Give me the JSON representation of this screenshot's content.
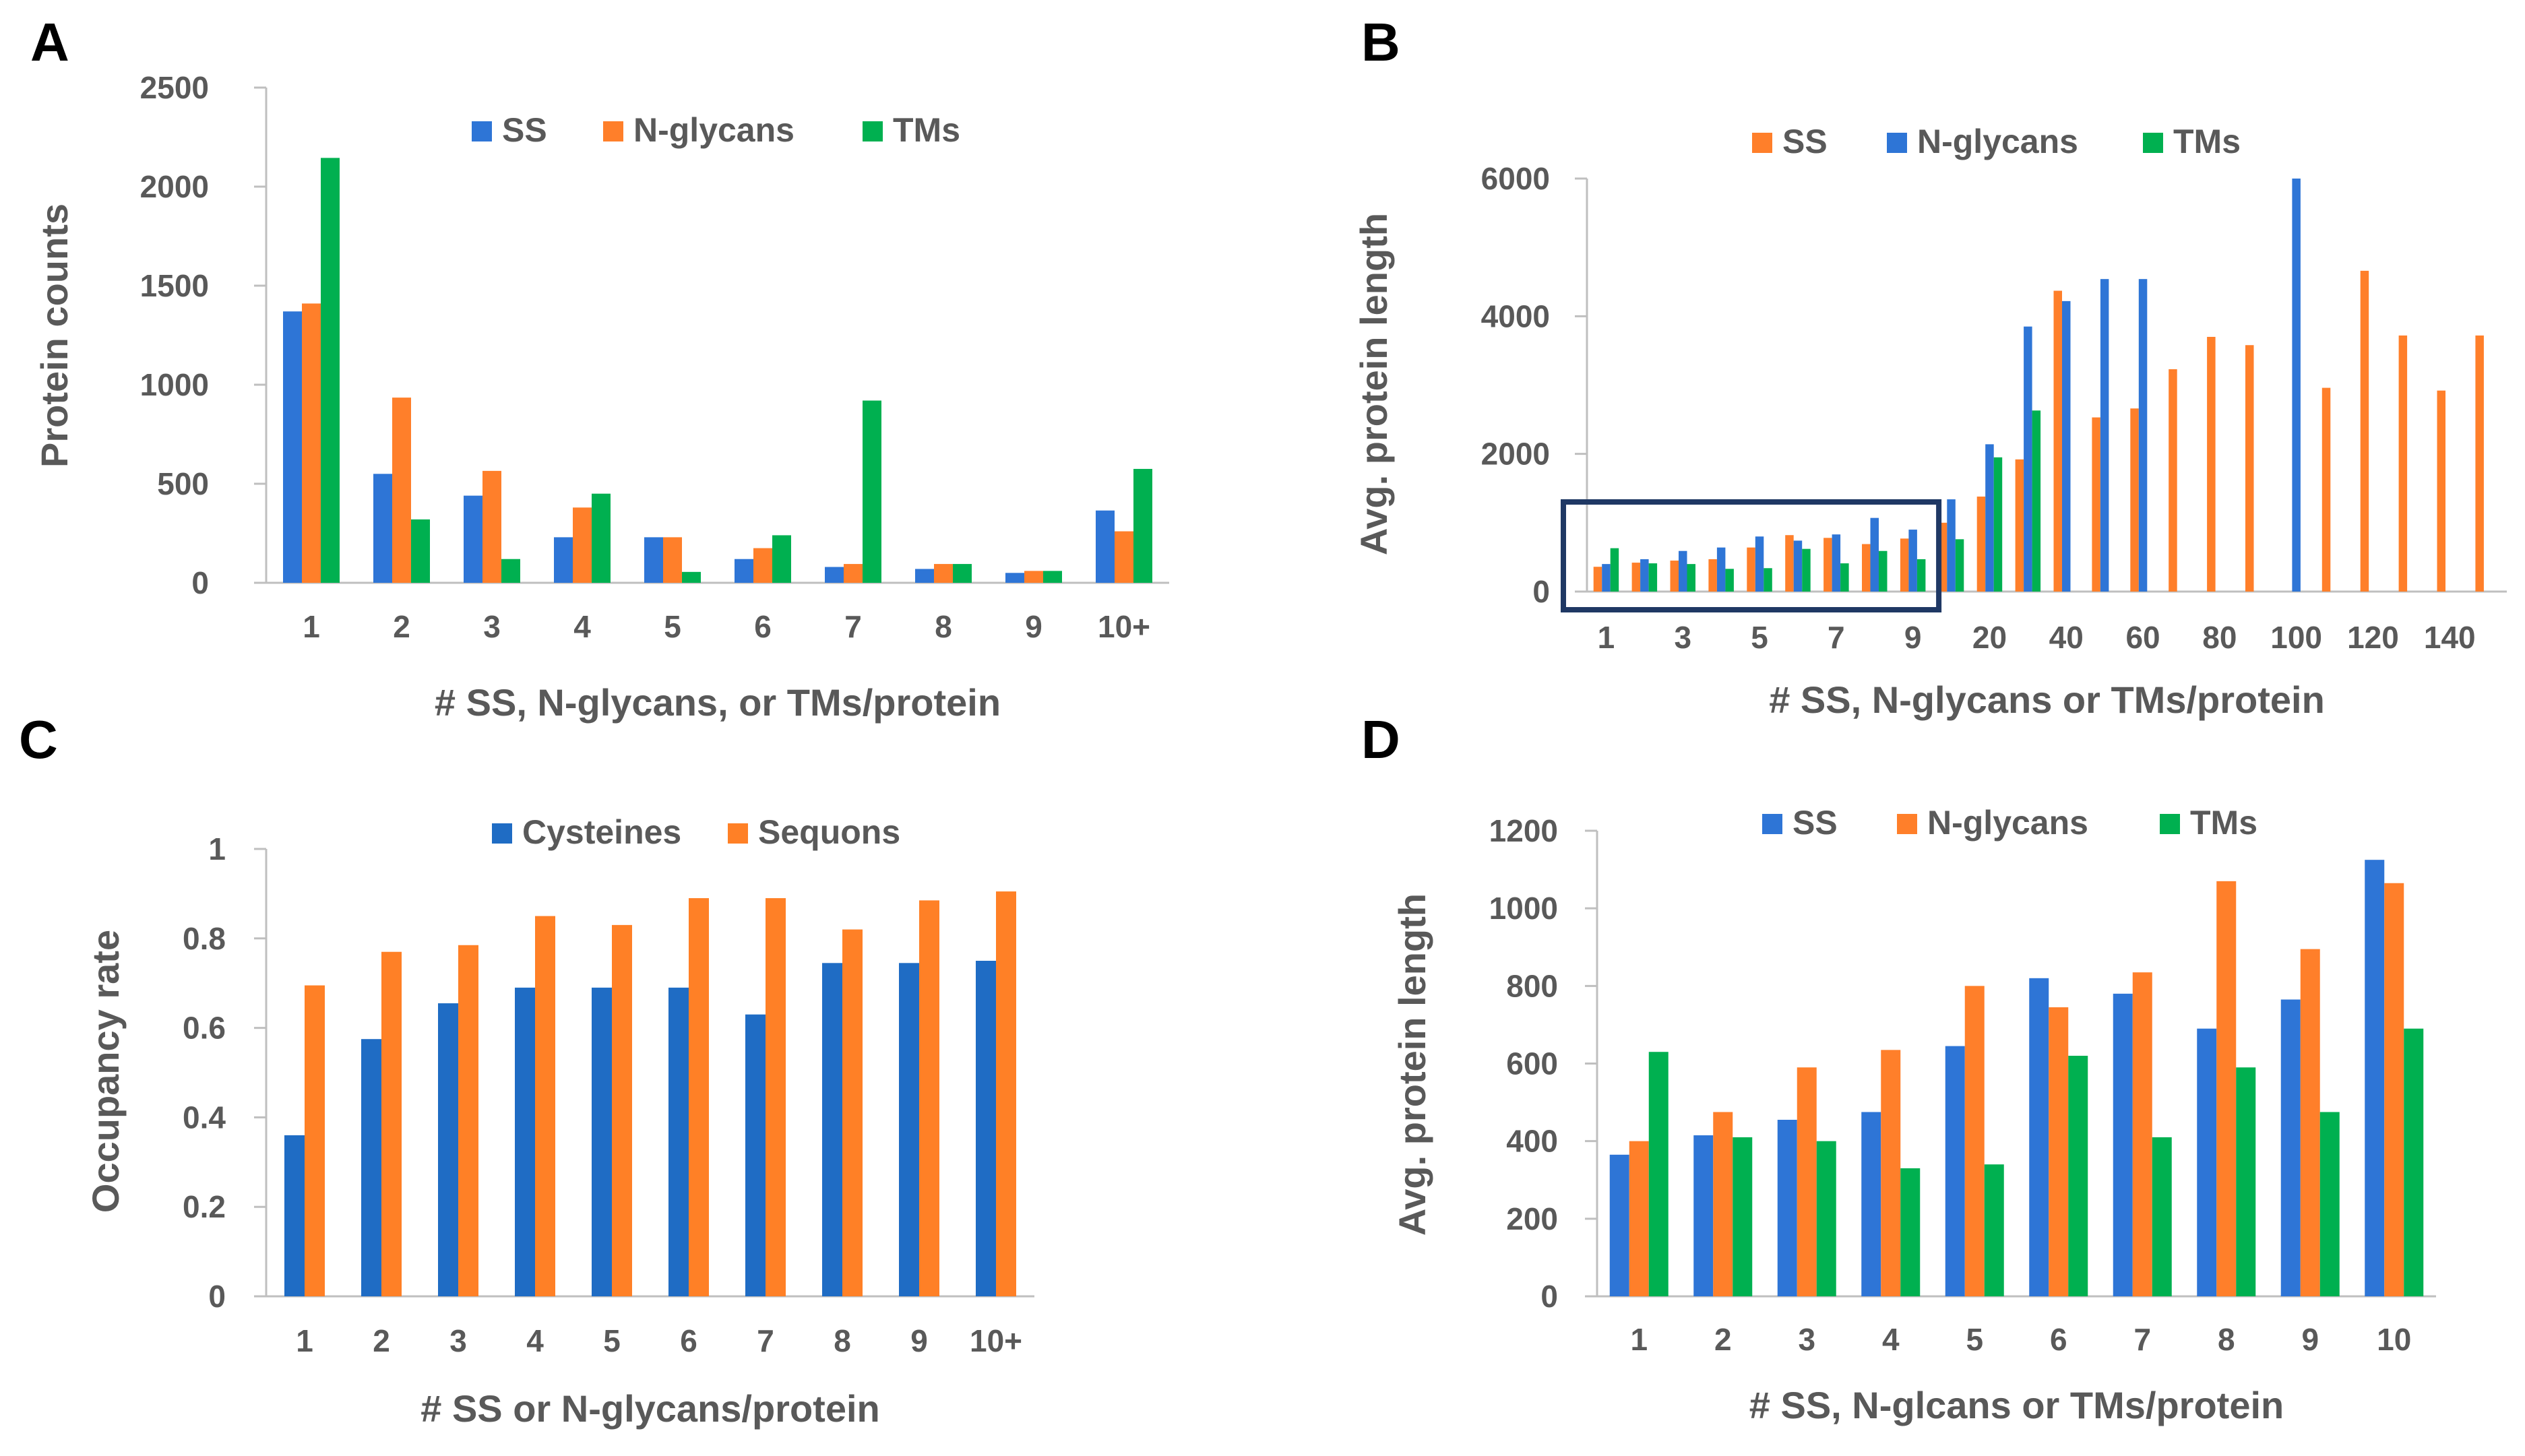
{
  "colors": {
    "ss": "#2E75D6",
    "nglycans": "#FF7F2A",
    "tms": "#00B050",
    "cysteines": "#1F6CC4",
    "sequons": "#FF8026",
    "axis": "#BFBFBF",
    "highlight_box": "#1F3864"
  },
  "chart_data": [
    {
      "id": "A",
      "panel_label": "A",
      "type": "bar",
      "xlabel": "# SS, N-glycans, or TMs/protein",
      "ylabel": "Protein counts",
      "ylim": [
        0,
        2500
      ],
      "yticks": [
        0,
        500,
        1000,
        1500,
        2000,
        2500
      ],
      "categories": [
        "1",
        "2",
        "3",
        "4",
        "5",
        "6",
        "7",
        "8",
        "9",
        "10+"
      ],
      "series": [
        {
          "name": "SS",
          "color": "#2E75D6",
          "values": [
            1370,
            550,
            440,
            230,
            230,
            120,
            80,
            70,
            50,
            365
          ]
        },
        {
          "name": "N-glycans",
          "color": "#FF7F2A",
          "values": [
            1410,
            935,
            565,
            380,
            230,
            175,
            95,
            95,
            60,
            260
          ]
        },
        {
          "name": "TMs",
          "color": "#00B050",
          "values": [
            2145,
            320,
            120,
            450,
            55,
            240,
            920,
            95,
            60,
            575
          ]
        }
      ],
      "legend": [
        "SS",
        "N-glycans",
        "TMs"
      ],
      "legend_position": "top"
    },
    {
      "id": "B",
      "panel_label": "B",
      "type": "bar",
      "xlabel": "# SS, N-glycans or TMs/protein",
      "ylabel": "Avg. protein length",
      "ylim": [
        0,
        6000
      ],
      "yticks": [
        0,
        2000,
        4000,
        6000
      ],
      "categories": [
        "1",
        "2",
        "3",
        "4",
        "5",
        "6",
        "7",
        "8",
        "9",
        "10",
        "20",
        "30",
        "40",
        "50",
        "60",
        "70",
        "80",
        "90",
        "100",
        "110",
        "120",
        "130",
        "140",
        "150"
      ],
      "xtick_labels": [
        "1",
        "3",
        "5",
        "7",
        "9",
        "20",
        "40",
        "60",
        "80",
        "100",
        "120",
        "140"
      ],
      "series": [
        {
          "name": "SS",
          "color": "#FF7F2A",
          "values": [
            360,
            420,
            450,
            470,
            640,
            820,
            780,
            690,
            770,
            1000,
            1380,
            1920,
            4370,
            2530,
            2660,
            3230,
            3700,
            3580,
            null,
            2960,
            4660,
            3720,
            2920,
            3720
          ]
        },
        {
          "name": "N-glycans",
          "color": "#2E75D6",
          "values": [
            400,
            470,
            590,
            640,
            800,
            740,
            830,
            1070,
            900,
            1340,
            2140,
            3850,
            4220,
            4540,
            4540,
            null,
            null,
            null,
            6000,
            null,
            null,
            null,
            null,
            null
          ]
        },
        {
          "name": "TMs",
          "color": "#00B050",
          "values": [
            630,
            410,
            400,
            330,
            340,
            620,
            410,
            590,
            470,
            760,
            1950,
            2630,
            null,
            null,
            null,
            null,
            null,
            null,
            null,
            null,
            null,
            null,
            null,
            null
          ]
        }
      ],
      "legend": [
        "SS",
        "N-glycans",
        "TMs"
      ],
      "legend_position": "top",
      "annotation": "box highlighting categories 1-9"
    },
    {
      "id": "C",
      "panel_label": "C",
      "type": "bar",
      "xlabel": "# SS or N-glycans/protein",
      "ylabel": "Occupancy rate",
      "ylim": [
        0,
        1
      ],
      "yticks": [
        0,
        0.2,
        0.4,
        0.6,
        0.8,
        1
      ],
      "ytick_labels": [
        "0",
        "0.2",
        "0.4",
        "0.6",
        "0.8",
        "1"
      ],
      "categories": [
        "1",
        "2",
        "3",
        "4",
        "5",
        "6",
        "7",
        "8",
        "9",
        "10+"
      ],
      "series": [
        {
          "name": "Cysteines",
          "color": "#1F6CC4",
          "values": [
            0.36,
            0.575,
            0.655,
            0.69,
            0.69,
            0.69,
            0.63,
            0.745,
            0.745,
            0.75
          ]
        },
        {
          "name": "Sequons",
          "color": "#FF8026",
          "values": [
            0.695,
            0.77,
            0.785,
            0.85,
            0.83,
            0.89,
            0.89,
            0.82,
            0.885,
            0.905
          ]
        }
      ],
      "legend": [
        "Cysteines",
        "Sequons"
      ],
      "legend_position": "top"
    },
    {
      "id": "D",
      "panel_label": "D",
      "type": "bar",
      "xlabel": "# SS, N-glcans or TMs/protein",
      "ylabel": "Avg. protein length",
      "ylim": [
        0,
        1200
      ],
      "yticks": [
        0,
        200,
        400,
        600,
        800,
        1000,
        1200
      ],
      "categories": [
        "1",
        "2",
        "3",
        "4",
        "5",
        "6",
        "7",
        "8",
        "9",
        "10"
      ],
      "series": [
        {
          "name": "SS",
          "color": "#2E75D6",
          "values": [
            365,
            415,
            455,
            475,
            645,
            820,
            780,
            690,
            765,
            1125
          ]
        },
        {
          "name": "N-glycans",
          "color": "#FF7F2A",
          "values": [
            400,
            475,
            590,
            635,
            800,
            745,
            835,
            1070,
            895,
            1065
          ]
        },
        {
          "name": "TMs",
          "color": "#00B050",
          "values": [
            630,
            410,
            400,
            330,
            340,
            620,
            410,
            590,
            475,
            690
          ]
        }
      ],
      "legend": [
        "SS",
        "N-glycans",
        "TMs"
      ],
      "legend_position": "top"
    }
  ]
}
